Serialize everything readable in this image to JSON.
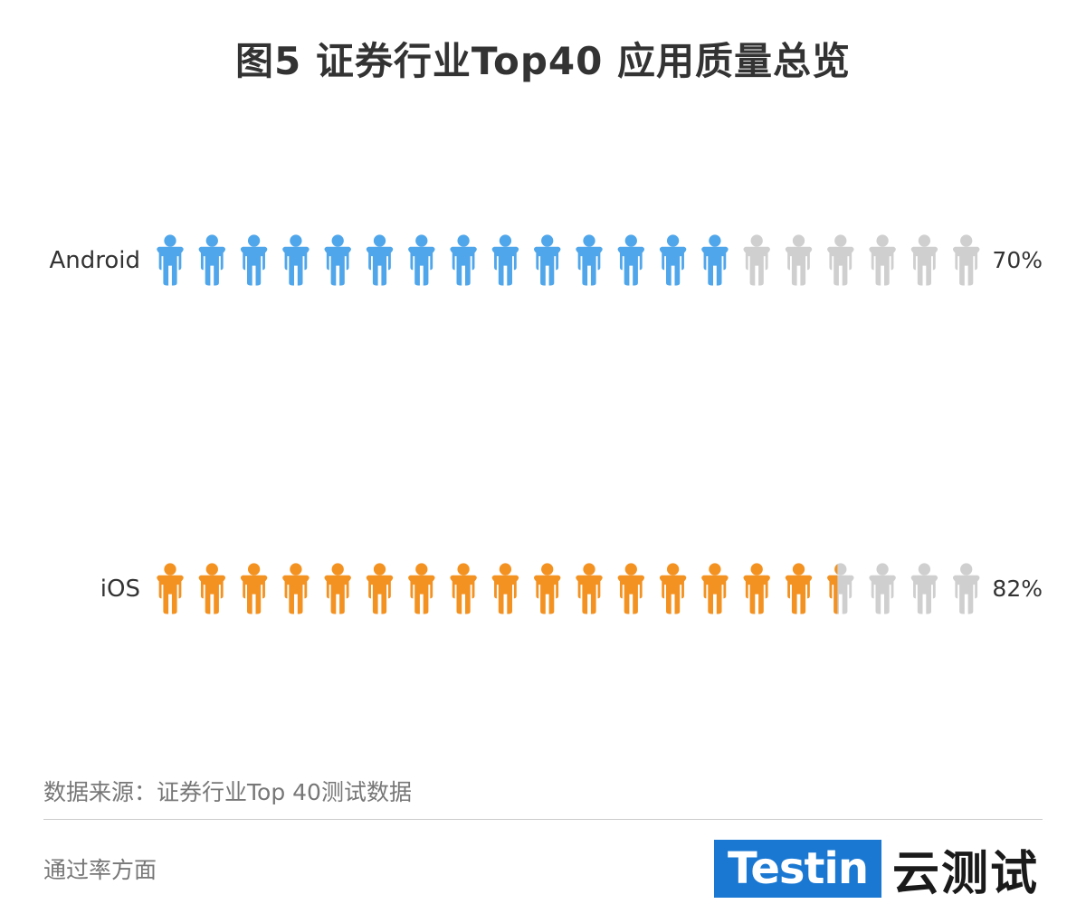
{
  "title": "图5 证券行业Top40 应用质量总览",
  "chart_data": {
    "type": "pictogram",
    "icons_per_row": 20,
    "series": [
      {
        "name": "Android",
        "value": 0.7,
        "label": "70%",
        "color": "#4fa6ea"
      },
      {
        "name": "iOS",
        "value": 0.82,
        "label": "82%",
        "color": "#f39221"
      }
    ],
    "inactive_color": "#cfcfcf",
    "icon": "person-icon"
  },
  "footer": {
    "source": "数据来源：证券行业Top 40测试数据",
    "note": "通过率方面"
  },
  "brand": {
    "logo_text": "Testin",
    "logo_cn": "云测试",
    "color": "#1a78d2"
  }
}
